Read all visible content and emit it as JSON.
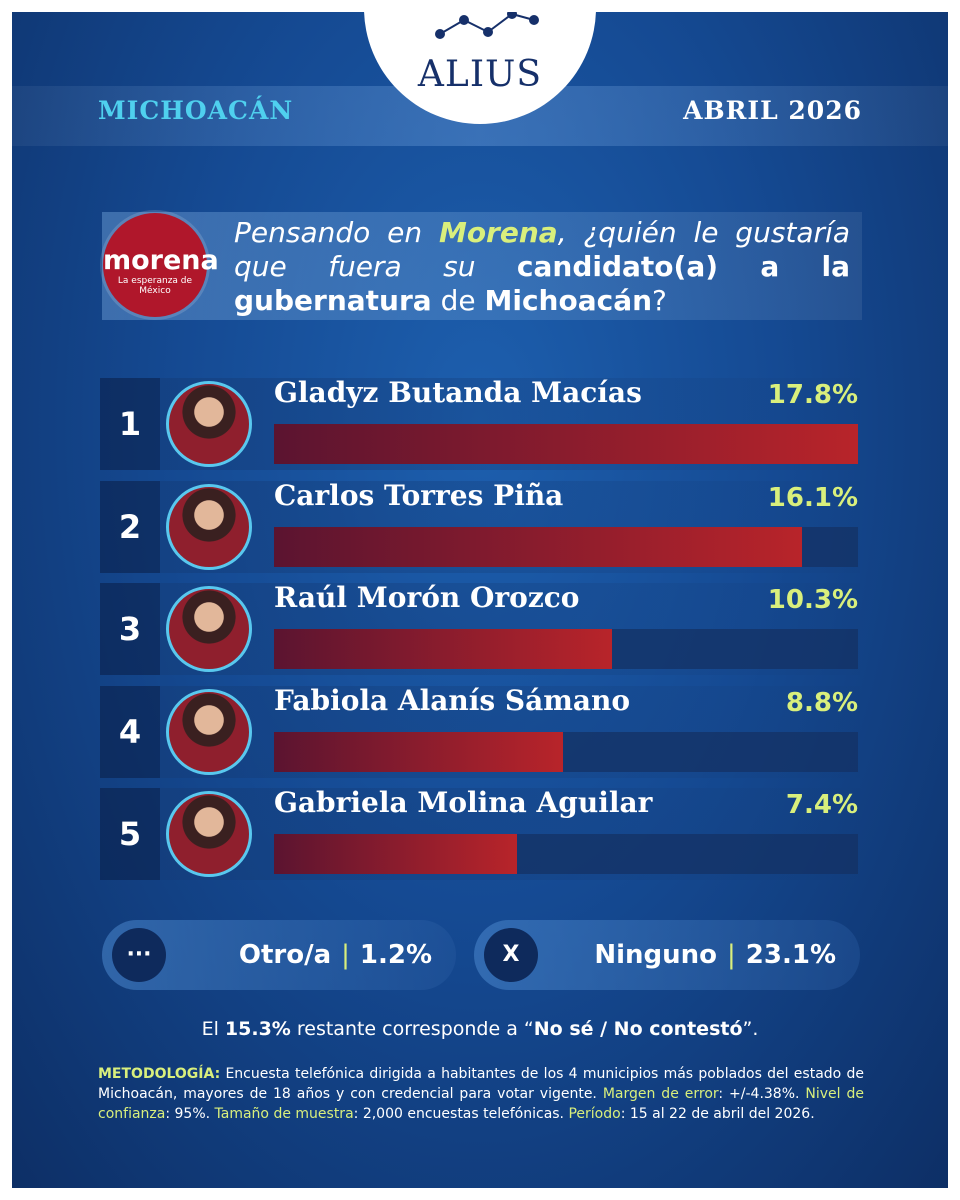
{
  "header": {
    "brand": "ALIUS",
    "region": "MICHOACÁN",
    "date": "ABRIL 2026"
  },
  "logo": {
    "name": "morena",
    "tagline": "La esperanza de México"
  },
  "question": {
    "parts": [
      {
        "text": "Pensando en ",
        "style": "italic"
      },
      {
        "text": "Morena",
        "style": "italic-accent"
      },
      {
        "text": ", ¿quién le gustaría que fuera su ",
        "style": "italic"
      },
      {
        "text": "candidato(a) a la gubernatura",
        "style": "bold"
      },
      {
        "text": " de ",
        "style": "normal"
      },
      {
        "text": "Michoacán",
        "style": "bold"
      },
      {
        "text": "?",
        "style": "normal"
      }
    ]
  },
  "chart_data": {
    "type": "bar",
    "orientation": "horizontal",
    "ranks": [
      1,
      2,
      3,
      4,
      5
    ],
    "categories": [
      "Gladyz Butanda Macías",
      "Carlos Torres Piña",
      "Raúl Morón Orozco",
      "Fabiola Alanís Sámano",
      "Gabriela Molina Aguilar"
    ],
    "values": [
      17.8,
      16.1,
      10.3,
      8.8,
      7.4
    ],
    "value_labels": [
      "17.8%",
      "16.1%",
      "10.3%",
      "8.8%",
      "7.4%"
    ],
    "xlim": [
      0,
      17.8
    ],
    "color": "#b8242a"
  },
  "other_options": [
    {
      "icon": "···",
      "label": "Otro/a",
      "value_label": "1.2%"
    },
    {
      "icon": "X",
      "label": "Ninguno",
      "value_label": "23.1%"
    }
  ],
  "separator": "|",
  "note": {
    "parts": [
      {
        "text": "El ",
        "style": "normal"
      },
      {
        "text": "15.3%",
        "style": "bold"
      },
      {
        "text": " restante corresponde a “",
        "style": "normal"
      },
      {
        "text": "No sé / No contestó",
        "style": "bold"
      },
      {
        "text": "”.",
        "style": "normal"
      }
    ]
  },
  "methodology": {
    "parts": [
      {
        "text": "METODOLOGÍA:",
        "style": "accent-bold"
      },
      {
        "text": " Encuesta telefónica dirigida a habitantes de los 4 municipios más poblados del estado de Michoacán, mayores de 18 años y con credencial para votar vigente. ",
        "style": "normal"
      },
      {
        "text": "Margen de error",
        "style": "accent"
      },
      {
        "text": ": +/-4.38%. ",
        "style": "normal"
      },
      {
        "text": "Nivel de confianza",
        "style": "accent"
      },
      {
        "text": ": 95%. ",
        "style": "normal"
      },
      {
        "text": "Tamaño de muestra",
        "style": "accent"
      },
      {
        "text": ": 2,000 encuestas telefónicas. ",
        "style": "normal"
      },
      {
        "text": "Período",
        "style": "accent"
      },
      {
        "text": ": 15 al 22 de abril del 2026.",
        "style": "normal"
      }
    ]
  }
}
